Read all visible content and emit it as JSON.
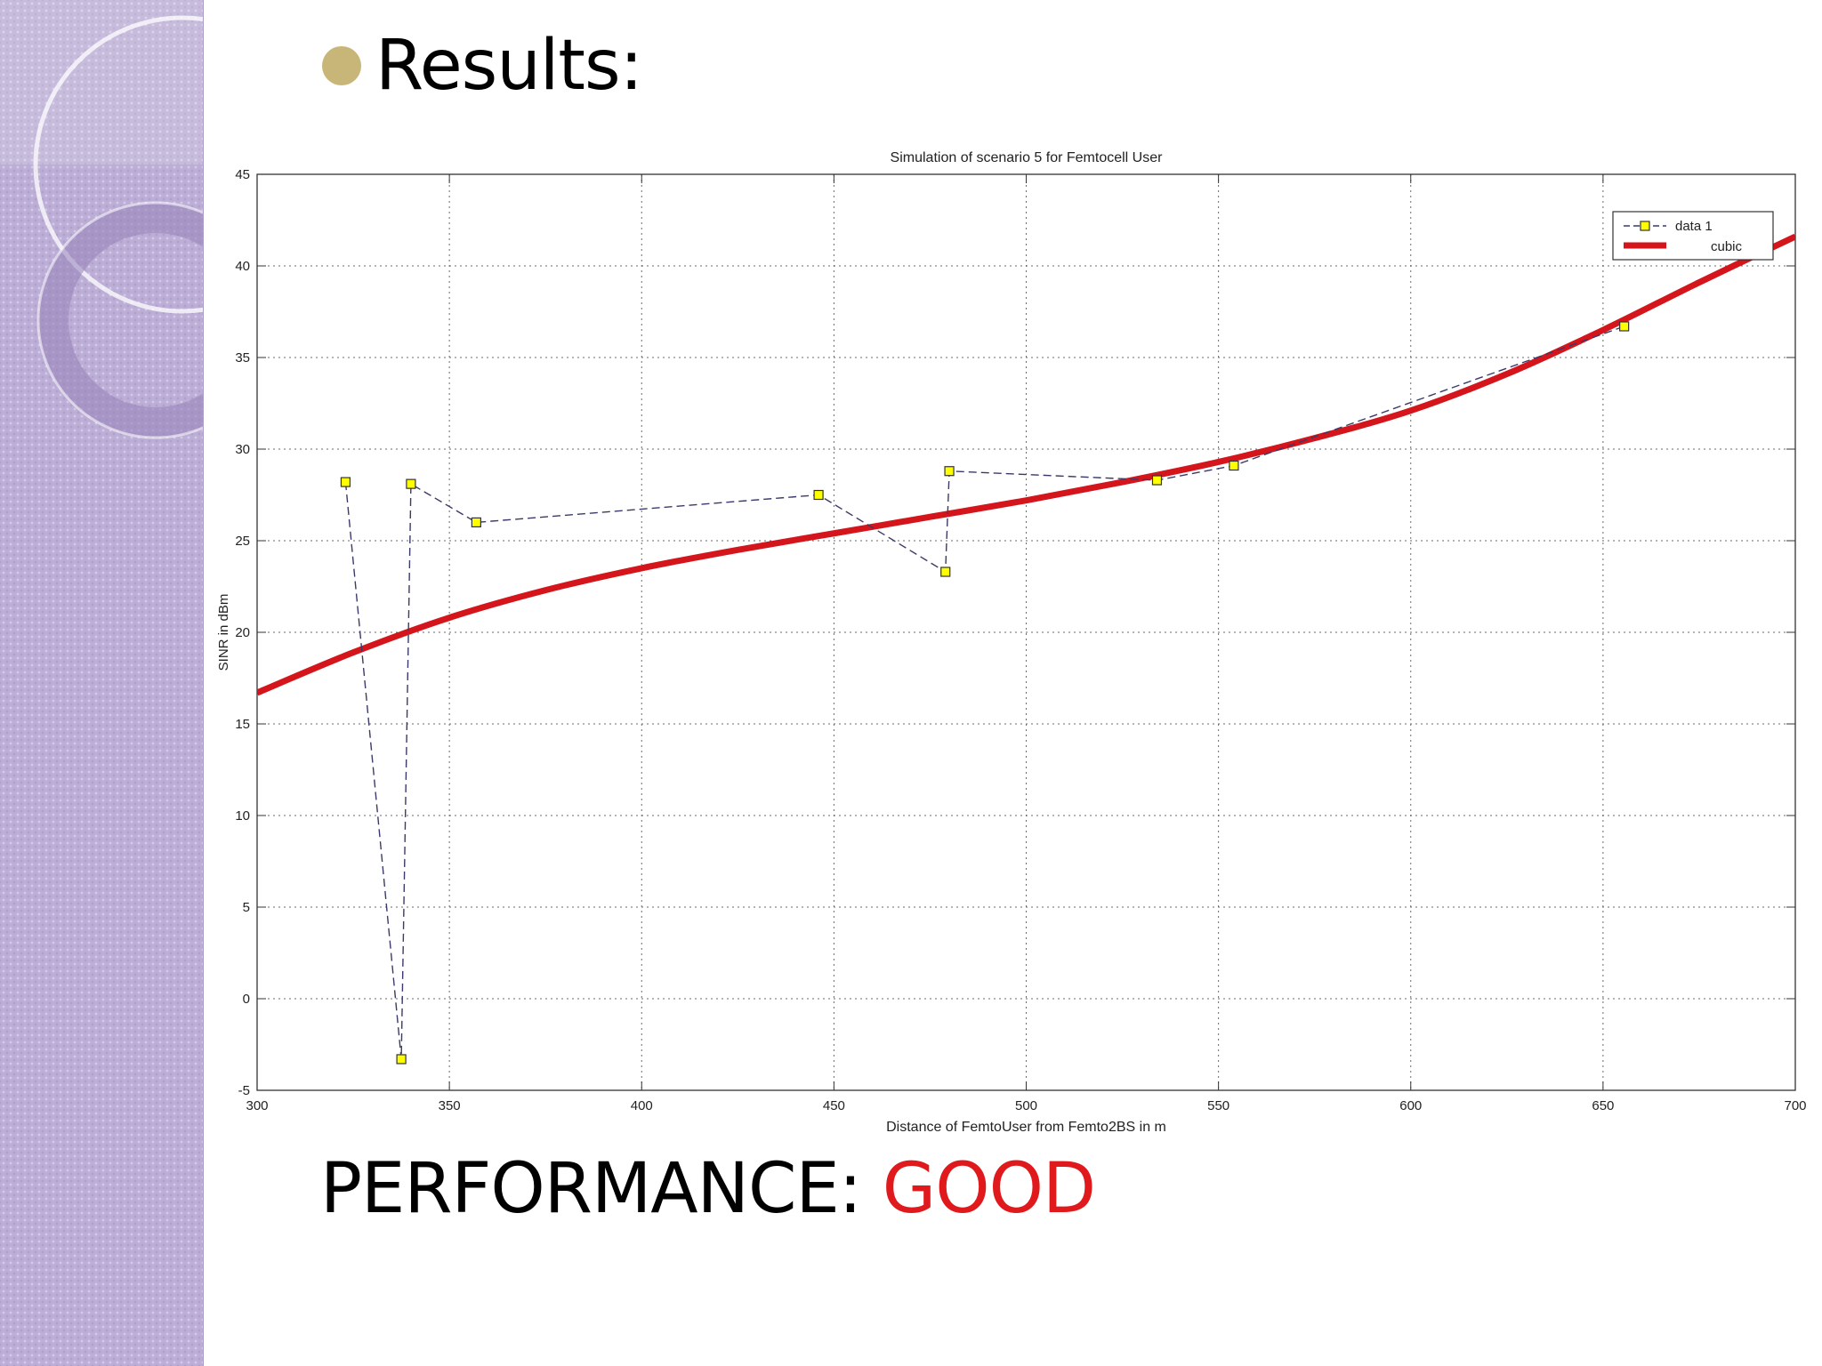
{
  "slide": {
    "title": "Results:",
    "performance_label": "PERFORMANCE: ",
    "performance_value": "GOOD",
    "performance_value_color": "#e0191c",
    "bullet_color": "#c8b679",
    "sidebar_color": "#bcaed6"
  },
  "chart_data": {
    "type": "line",
    "title": "Simulation of scenario 5 for Femtocell User",
    "xlabel": "Distance of FemtoUser from Femto2BS in m",
    "ylabel": "SINR in dBm",
    "xlim": [
      300,
      700
    ],
    "ylim": [
      -5,
      45
    ],
    "xticks": [
      300,
      350,
      400,
      450,
      500,
      550,
      600,
      650,
      700
    ],
    "yticks": [
      -5,
      0,
      5,
      10,
      15,
      20,
      25,
      30,
      35,
      40,
      45
    ],
    "grid": true,
    "legend_position": "top-right",
    "series": [
      {
        "name": "data 1",
        "style": "dashed-with-square-markers",
        "color": "#3a3a6a",
        "marker_color": "#ffff00",
        "x": [
          323,
          337.5,
          340,
          357,
          446,
          479,
          480,
          534,
          554,
          655.5
        ],
        "y": [
          28.2,
          -3.3,
          28.1,
          26.0,
          27.5,
          23.3,
          28.8,
          28.3,
          29.1,
          36.7
        ]
      },
      {
        "name": "cubic",
        "style": "solid-thick",
        "color": "#d4151b",
        "x": [
          300,
          325,
          350,
          375,
          400,
          425,
          450,
          475,
          500,
          525,
          550,
          575,
          600,
          625,
          650,
          675,
          700
        ],
        "y": [
          16.7,
          18.9,
          20.8,
          22.3,
          23.5,
          24.5,
          25.4,
          26.3,
          27.2,
          28.2,
          29.3,
          30.6,
          32.1,
          34.1,
          36.5,
          39.1,
          41.6
        ]
      }
    ]
  }
}
